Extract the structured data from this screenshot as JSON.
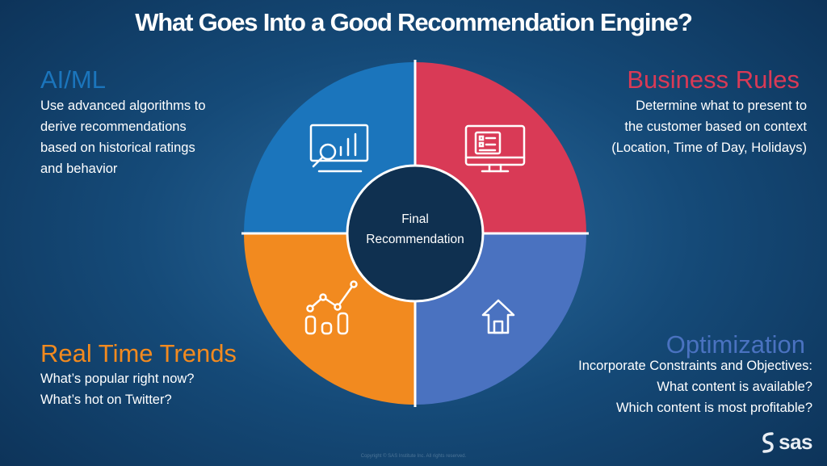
{
  "title": "What Goes Into a Good Recommendation Engine?",
  "center_label": {
    "line1": "Final",
    "line2": "Recommendation"
  },
  "sections": {
    "aiml": {
      "heading": "AI/ML",
      "color": "#1b75bc",
      "lines": [
        "Use advanced algorithms to",
        "derive recommendations",
        "based on historical ratings",
        "and behavior"
      ],
      "icon": "chart-magnifier-icon"
    },
    "business_rules": {
      "heading": "Business Rules",
      "color": "#d93a56",
      "lines": [
        "Determine what to present to",
        "the customer based on context",
        "(Location, Time of Day, Holidays)"
      ],
      "icon": "monitor-checklist-icon"
    },
    "real_time_trends": {
      "heading": "Real Time Trends",
      "color": "#f28a1f",
      "lines": [
        "What’s popular right now?",
        "What’s hot on Twitter?"
      ],
      "icon": "trend-chart-icon"
    },
    "optimization": {
      "heading": "Optimization",
      "color": "#4a72c0",
      "lines": [
        "Incorporate Constraints and Objectives:",
        "What content is available?",
        "Which content is most profitable?"
      ],
      "icon": "house-arrow-icon"
    }
  },
  "footer": {
    "copyright": "Copyright © SAS Institute Inc. All rights reserved.",
    "logo_text": "sas"
  }
}
